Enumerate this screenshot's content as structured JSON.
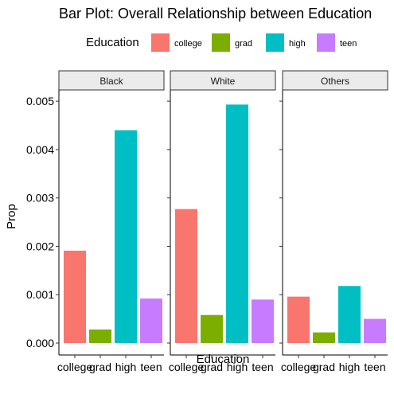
{
  "chart_data": {
    "type": "bar",
    "title": "Bar Plot: Overall Relationship between Education",
    "xlabel": "Education",
    "ylabel": "Prop",
    "legend": {
      "title": "Education",
      "position": "top",
      "entries": [
        {
          "label": "college",
          "color": "#F8766D"
        },
        {
          "label": "grad",
          "color": "#7CAE00"
        },
        {
          "label": "high",
          "color": "#00BFC4"
        },
        {
          "label": "teen",
          "color": "#C77CFF"
        }
      ]
    },
    "categories": [
      "college",
      "grad",
      "high",
      "teen"
    ],
    "ylim": [
      0,
      0.00515
    ],
    "yticks": [
      "0.000",
      "0.001",
      "0.002",
      "0.003",
      "0.004",
      "0.005"
    ],
    "grid": false,
    "facets": [
      {
        "name": "Black",
        "values": [
          0.00191,
          0.00028,
          0.0044,
          0.00092
        ]
      },
      {
        "name": "White",
        "values": [
          0.00277,
          0.00058,
          0.00493,
          0.0009
        ]
      },
      {
        "name": "Others",
        "values": [
          0.00096,
          0.00022,
          0.00118,
          0.0005
        ]
      }
    ]
  }
}
